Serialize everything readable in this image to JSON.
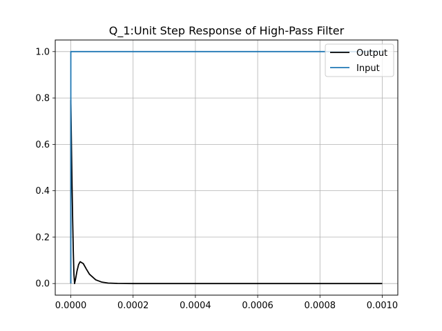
{
  "chart_data": {
    "type": "line",
    "title": "Q_1:Unit Step Response of High-Pass Filter",
    "xlabel": "",
    "ylabel": "",
    "xlim": [
      -5e-05,
      0.00105
    ],
    "ylim": [
      -0.05,
      1.05
    ],
    "x_ticks": [
      0.0,
      0.0002,
      0.0004,
      0.0006,
      0.0008,
      0.001
    ],
    "x_tick_labels": [
      "0.0000",
      "0.0002",
      "0.0004",
      "0.0006",
      "0.0008",
      "0.0010"
    ],
    "y_ticks": [
      0.0,
      0.2,
      0.4,
      0.6,
      0.8,
      1.0
    ],
    "y_tick_labels": [
      "0.0",
      "0.2",
      "0.4",
      "0.6",
      "0.8",
      "1.0"
    ],
    "grid": true,
    "legend_position": "top-right",
    "series": [
      {
        "name": "Output",
        "color": "#000000",
        "x": [
          0.0,
          0.0,
          2e-06,
          4e-06,
          6e-06,
          8e-06,
          1e-05,
          1.2e-05,
          1.5e-05,
          2e-05,
          2.5e-05,
          3e-05,
          4e-05,
          5e-05,
          6e-05,
          8e-05,
          0.0001,
          0.00012,
          0.00015,
          0.0002,
          0.00025,
          0.0003,
          0.0004,
          0.0005,
          0.0006,
          0.0008,
          0.001
        ],
        "y": [
          0.0,
          0.79,
          0.6,
          0.42,
          0.27,
          0.14,
          0.04,
          0.0,
          0.018,
          0.055,
          0.082,
          0.094,
          0.086,
          0.062,
          0.04,
          0.016,
          0.006,
          0.002,
          0.0005,
          0.0,
          0.0,
          0.0,
          0.0,
          0.0,
          0.0,
          0.0,
          0.0
        ]
      },
      {
        "name": "Input",
        "color": "#1f77b4",
        "x": [
          0.0,
          0.0,
          0.001
        ],
        "y": [
          0.0,
          1.0,
          1.0
        ]
      }
    ]
  }
}
